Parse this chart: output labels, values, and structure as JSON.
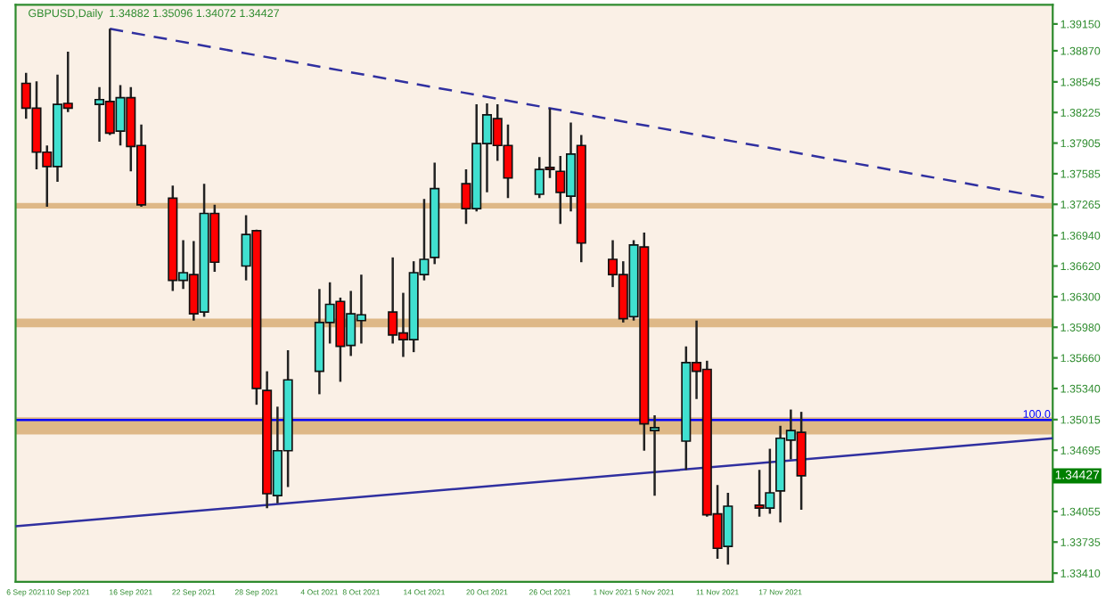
{
  "chart_data": {
    "type": "candlestick",
    "title": "GBPUSD,Daily  1.34882 1.35096 1.34072 1.34427",
    "x": [
      "2021-09-06",
      "2021-09-07",
      "2021-09-08",
      "2021-09-09",
      "2021-09-10",
      "2021-09-13",
      "2021-09-14",
      "2021-09-15",
      "2021-09-16",
      "2021-09-17",
      "2021-09-20",
      "2021-09-21",
      "2021-09-22",
      "2021-09-23",
      "2021-09-24",
      "2021-09-27",
      "2021-09-28",
      "2021-09-29",
      "2021-09-30",
      "2021-10-01",
      "2021-10-04",
      "2021-10-05",
      "2021-10-06",
      "2021-10-07",
      "2021-10-08",
      "2021-10-11",
      "2021-10-12",
      "2021-10-13",
      "2021-10-14",
      "2021-10-15",
      "2021-10-18",
      "2021-10-19",
      "2021-10-20",
      "2021-10-21",
      "2021-10-22",
      "2021-10-25",
      "2021-10-26",
      "2021-10-27",
      "2021-10-28",
      "2021-10-29",
      "2021-11-01",
      "2021-11-02",
      "2021-11-03",
      "2021-11-04",
      "2021-11-05",
      "2021-11-08",
      "2021-11-09",
      "2021-11-10",
      "2021-11-11",
      "2021-11-12",
      "2021-11-15",
      "2021-11-16",
      "2021-11-17",
      "2021-11-18",
      "2021-11-19"
    ],
    "ohlc": [
      [
        1.3853,
        1.3864,
        1.3816,
        1.3827
      ],
      [
        1.3827,
        1.3855,
        1.3763,
        1.3781
      ],
      [
        1.3781,
        1.3788,
        1.3724,
        1.3766
      ],
      [
        1.3766,
        1.3862,
        1.375,
        1.3831
      ],
      [
        1.3832,
        1.3886,
        1.3823,
        1.3827
      ],
      [
        1.3831,
        1.3849,
        1.3792,
        1.3836
      ],
      [
        1.3834,
        1.391,
        1.3799,
        1.3801
      ],
      [
        1.3803,
        1.3851,
        1.3788,
        1.3838
      ],
      [
        1.3838,
        1.3849,
        1.3761,
        1.3787
      ],
      [
        1.3788,
        1.381,
        1.3724,
        1.3726
      ],
      [
        1.3733,
        1.3746,
        1.3636,
        1.3647
      ],
      [
        1.3647,
        1.3689,
        1.3638,
        1.3655
      ],
      [
        1.3653,
        1.3688,
        1.3605,
        1.3612
      ],
      [
        1.3614,
        1.3748,
        1.3609,
        1.3717
      ],
      [
        1.3717,
        1.3726,
        1.3656,
        1.3666
      ],
      [
        1.3662,
        1.3715,
        1.3647,
        1.3695
      ],
      [
        1.3699,
        1.37,
        1.3517,
        1.3534
      ],
      [
        1.3532,
        1.3552,
        1.3409,
        1.3424
      ],
      [
        1.3422,
        1.3515,
        1.3414,
        1.3469
      ],
      [
        1.3469,
        1.3574,
        1.3431,
        1.3543
      ],
      [
        1.3552,
        1.3638,
        1.3528,
        1.3603
      ],
      [
        1.3603,
        1.3645,
        1.3581,
        1.3622
      ],
      [
        1.3625,
        1.3629,
        1.3541,
        1.3578
      ],
      [
        1.3579,
        1.3636,
        1.3568,
        1.3612
      ],
      [
        1.3605,
        1.3653,
        1.3581,
        1.3611
      ],
      [
        1.3614,
        1.3671,
        1.3581,
        1.359
      ],
      [
        1.3592,
        1.3634,
        1.3567,
        1.3585
      ],
      [
        1.3585,
        1.3667,
        1.3572,
        1.3655
      ],
      [
        1.3653,
        1.3732,
        1.3647,
        1.3669
      ],
      [
        1.3671,
        1.377,
        1.3664,
        1.3743
      ],
      [
        1.3748,
        1.3763,
        1.3706,
        1.3722
      ],
      [
        1.3722,
        1.3831,
        1.3719,
        1.379
      ],
      [
        1.379,
        1.3832,
        1.3739,
        1.382
      ],
      [
        1.3816,
        1.3831,
        1.3772,
        1.3788
      ],
      [
        1.3788,
        1.381,
        1.3733,
        1.3754
      ],
      [
        1.3737,
        1.3776,
        1.3733,
        1.3763
      ],
      [
        1.3765,
        1.3827,
        1.3754,
        1.3763
      ],
      [
        1.3761,
        1.3777,
        1.3706,
        1.3739
      ],
      [
        1.3735,
        1.3812,
        1.3719,
        1.3779
      ],
      [
        1.3788,
        1.3799,
        1.3666,
        1.3686
      ],
      [
        1.3669,
        1.3689,
        1.364,
        1.3653
      ],
      [
        1.3653,
        1.3667,
        1.3603,
        1.3607
      ],
      [
        1.3609,
        1.3689,
        1.3605,
        1.3684
      ],
      [
        1.3682,
        1.3697,
        1.3469,
        1.3497
      ],
      [
        1.349,
        1.3506,
        1.3422,
        1.3493
      ],
      [
        1.3479,
        1.3578,
        1.3449,
        1.3561
      ],
      [
        1.3561,
        1.3605,
        1.3523,
        1.3552
      ],
      [
        1.3554,
        1.3563,
        1.34,
        1.3402
      ],
      [
        1.3403,
        1.3433,
        1.3356,
        1.3367
      ],
      [
        1.3369,
        1.3425,
        1.335,
        1.3411
      ],
      [
        1.3412,
        1.3449,
        1.34,
        1.3409
      ],
      [
        1.3409,
        1.3471,
        1.3403,
        1.3425
      ],
      [
        1.3427,
        1.3495,
        1.3394,
        1.3482
      ],
      [
        1.348,
        1.3512,
        1.346,
        1.349
      ],
      [
        1.34882,
        1.35096,
        1.34072,
        1.34427
      ]
    ],
    "colors": [
      "#ff0000",
      "#ff0000",
      "#ff0000",
      "#40e0d0",
      "#ff0000",
      "#40e0d0",
      "#ff0000",
      "#40e0d0",
      "#ff0000",
      "#ff0000",
      "#ff0000",
      "#40e0d0",
      "#ff0000",
      "#40e0d0",
      "#ff0000",
      "#40e0d0",
      "#ff0000",
      "#ff0000",
      "#40e0d0",
      "#40e0d0",
      "#40e0d0",
      "#40e0d0",
      "#ff0000",
      "#40e0d0",
      "#40e0d0",
      "#ff0000",
      "#ff0000",
      "#40e0d0",
      "#40e0d0",
      "#40e0d0",
      "#ff0000",
      "#40e0d0",
      "#40e0d0",
      "#ff0000",
      "#ff0000",
      "#40e0d0",
      "#ff0000",
      "#ff0000",
      "#40e0d0",
      "#ff0000",
      "#ff0000",
      "#ff0000",
      "#40e0d0",
      "#ff0000",
      "#40e0d0",
      "#40e0d0",
      "#ff0000",
      "#ff0000",
      "#ff0000",
      "#40e0d0",
      "#ff0000",
      "#40e0d0",
      "#40e0d0",
      "#40e0d0",
      "#ff0000"
    ],
    "series": [
      {
        "type": "line",
        "x": [
          "2021-09-14",
          "2021-12-13"
        ],
        "values": [
          1.391,
          1.3732
        ],
        "color": "#3030a0",
        "line_style": "dashed"
      },
      {
        "type": "line",
        "x": [
          "2021-09-05",
          "2021-12-13"
        ],
        "values": [
          1.339,
          1.3482
        ],
        "color": "#3030a0",
        "line_style": "solid"
      }
    ],
    "bands": [
      {
        "axis": "y",
        "from": 1.3722,
        "to": 1.3728,
        "color": "#deb887"
      },
      {
        "axis": "y",
        "from": 1.3598,
        "to": 1.3607,
        "color": "#deb887"
      },
      {
        "axis": "y",
        "from": 1.3486,
        "to": 1.3504,
        "color": "#deb887"
      }
    ],
    "ref_lines": [
      {
        "axis": "y",
        "value": 1.3501,
        "color": "#0000ff"
      }
    ],
    "annotations": [
      {
        "text": "100.0",
        "x": "2021-12-13",
        "y": 1.3501
      },
      {
        "text": "1.34427",
        "y": 1.34427
      }
    ],
    "xlim": [
      "2021-09-05",
      "2021-12-13"
    ],
    "xticks": [
      {
        "value": "2021-09-06",
        "label": "6 Sep 2021"
      },
      {
        "value": "2021-09-10",
        "label": "10 Sep 2021"
      },
      {
        "value": "2021-09-16",
        "label": "16 Sep 2021"
      },
      {
        "value": "2021-09-22",
        "label": "22 Sep 2021"
      },
      {
        "value": "2021-09-28",
        "label": "28 Sep 2021"
      },
      {
        "value": "2021-10-04",
        "label": "4 Oct 2021"
      },
      {
        "value": "2021-10-08",
        "label": "8 Oct 2021"
      },
      {
        "value": "2021-10-14",
        "label": "14 Oct 2021"
      },
      {
        "value": "2021-10-20",
        "label": "20 Oct 2021"
      },
      {
        "value": "2021-10-26",
        "label": "26 Oct 2021"
      },
      {
        "value": "2021-11-01",
        "label": "1 Nov 2021"
      },
      {
        "value": "2021-11-05",
        "label": "5 Nov 2021"
      },
      {
        "value": "2021-11-11",
        "label": "11 Nov 2021"
      },
      {
        "value": "2021-11-17",
        "label": "17 Nov 2021"
      }
    ],
    "ylim": [
      1.3332,
      1.3935
    ],
    "yticks": [
      {
        "value": 1.3915,
        "label": "1.39150"
      },
      {
        "value": 1.3887,
        "label": "1.38870"
      },
      {
        "value": 1.38545,
        "label": "1.38545"
      },
      {
        "value": 1.38225,
        "label": "1.38225"
      },
      {
        "value": 1.37905,
        "label": "1.37905"
      },
      {
        "value": 1.37585,
        "label": "1.37585"
      },
      {
        "value": 1.37265,
        "label": "1.37265"
      },
      {
        "value": 1.3694,
        "label": "1.36940"
      },
      {
        "value": 1.3662,
        "label": "1.36620"
      },
      {
        "value": 1.363,
        "label": "1.36300"
      },
      {
        "value": 1.3598,
        "label": "1.35980"
      },
      {
        "value": 1.3566,
        "label": "1.35660"
      },
      {
        "value": 1.3534,
        "label": "1.35340"
      },
      {
        "value": 1.35015,
        "label": "1.35015"
      },
      {
        "value": 1.34695,
        "label": "1.34695"
      },
      {
        "value": 1.34055,
        "label": "1.34055"
      },
      {
        "value": 1.33735,
        "label": "1.33735"
      },
      {
        "value": 1.3341,
        "label": "1.33410"
      }
    ],
    "grid": false,
    "legend": false
  }
}
